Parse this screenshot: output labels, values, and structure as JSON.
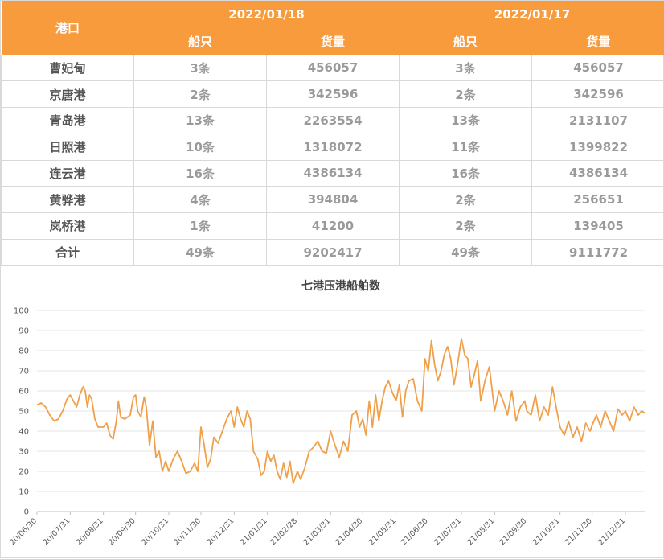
{
  "table": {
    "header_port": "港口",
    "dates": [
      "2022/01/18",
      "2022/01/17"
    ],
    "sub_headers": [
      "船只",
      "货量",
      "船只",
      "货量"
    ],
    "rows": [
      {
        "port": "曹妃甸",
        "ships1": "3条",
        "cargo1": "456057",
        "ships2": "3条",
        "cargo2": "456057"
      },
      {
        "port": "京唐港",
        "ships1": "2条",
        "cargo1": "342596",
        "ships2": "2条",
        "cargo2": "342596"
      },
      {
        "port": "青岛港",
        "ships1": "13条",
        "cargo1": "2263554",
        "ships2": "13条",
        "cargo2": "2131107"
      },
      {
        "port": "日照港",
        "ships1": "10条",
        "cargo1": "1318072",
        "ships2": "11条",
        "cargo2": "1399822"
      },
      {
        "port": "连云港",
        "ships1": "16条",
        "cargo1": "4386134",
        "ships2": "16条",
        "cargo2": "4386134"
      },
      {
        "port": "黄骅港",
        "ships1": "4条",
        "cargo1": "394804",
        "ships2": "2条",
        "cargo2": "256651"
      },
      {
        "port": "岚桥港",
        "ships1": "1条",
        "cargo1": "41200",
        "ships2": "2条",
        "cargo2": "139405"
      },
      {
        "port": "合计",
        "ships1": "49条",
        "cargo1": "9202417",
        "ships2": "49条",
        "cargo2": "9111772"
      }
    ]
  },
  "chart_data": {
    "type": "line",
    "title": "七港压港船舶数",
    "xlabel": "",
    "ylabel": "",
    "ylim": [
      0,
      100
    ],
    "yticks": [
      0,
      10,
      20,
      30,
      40,
      50,
      60,
      70,
      80,
      90,
      100
    ],
    "x_range": [
      "20/06/30",
      "22/01/18"
    ],
    "xticks": [
      "20/06/30",
      "20/07/31",
      "20/08/31",
      "20/09/30",
      "20/10/31",
      "20/11/30",
      "20/12/31",
      "21/01/31",
      "21/02/28",
      "21/03/31",
      "21/04/30",
      "21/05/31",
      "21/06/30",
      "21/07/31",
      "21/08/31",
      "21/09/30",
      "21/10/31",
      "21/11/30",
      "21/12/31"
    ],
    "grid": "horizontal",
    "line_color": "#f0a04b",
    "series": [
      {
        "points": [
          [
            "20/06/30",
            53
          ],
          [
            "20/07/04",
            54
          ],
          [
            "20/07/08",
            52
          ],
          [
            "20/07/12",
            48
          ],
          [
            "20/07/16",
            45
          ],
          [
            "20/07/20",
            46
          ],
          [
            "20/07/24",
            50
          ],
          [
            "20/07/28",
            56
          ],
          [
            "20/07/31",
            58
          ],
          [
            "20/08/03",
            55
          ],
          [
            "20/08/06",
            52
          ],
          [
            "20/08/09",
            58
          ],
          [
            "20/08/12",
            62
          ],
          [
            "20/08/14",
            60
          ],
          [
            "20/08/16",
            52
          ],
          [
            "20/08/18",
            58
          ],
          [
            "20/08/20",
            56
          ],
          [
            "20/08/23",
            46
          ],
          [
            "20/08/26",
            42
          ],
          [
            "20/08/31",
            42
          ],
          [
            "20/09/03",
            44
          ],
          [
            "20/09/06",
            38
          ],
          [
            "20/09/09",
            36
          ],
          [
            "20/09/12",
            45
          ],
          [
            "20/09/14",
            55
          ],
          [
            "20/09/16",
            47
          ],
          [
            "20/09/20",
            46
          ],
          [
            "20/09/25",
            48
          ],
          [
            "20/09/28",
            57
          ],
          [
            "20/09/30",
            58
          ],
          [
            "20/10/02",
            50
          ],
          [
            "20/10/05",
            47
          ],
          [
            "20/10/08",
            57
          ],
          [
            "20/10/10",
            52
          ],
          [
            "20/10/13",
            33
          ],
          [
            "20/10/16",
            45
          ],
          [
            "20/10/19",
            27
          ],
          [
            "20/10/22",
            30
          ],
          [
            "20/10/25",
            20
          ],
          [
            "20/10/28",
            25
          ],
          [
            "20/10/31",
            20
          ],
          [
            "20/11/04",
            26
          ],
          [
            "20/11/08",
            30
          ],
          [
            "20/11/12",
            25
          ],
          [
            "20/11/16",
            19
          ],
          [
            "20/11/20",
            20
          ],
          [
            "20/11/24",
            24
          ],
          [
            "20/11/27",
            20
          ],
          [
            "20/11/30",
            42
          ],
          [
            "20/12/03",
            33
          ],
          [
            "20/12/06",
            22
          ],
          [
            "20/12/09",
            26
          ],
          [
            "20/12/12",
            37
          ],
          [
            "20/12/16",
            34
          ],
          [
            "20/12/20",
            40
          ],
          [
            "20/12/24",
            46
          ],
          [
            "20/12/28",
            50
          ],
          [
            "20/12/31",
            42
          ],
          [
            "21/01/03",
            52
          ],
          [
            "21/01/06",
            46
          ],
          [
            "21/01/09",
            42
          ],
          [
            "21/01/12",
            50
          ],
          [
            "21/01/15",
            46
          ],
          [
            "21/01/18",
            30
          ],
          [
            "21/01/22",
            26
          ],
          [
            "21/01/25",
            18
          ],
          [
            "21/01/28",
            20
          ],
          [
            "21/01/31",
            30
          ],
          [
            "21/02/03",
            25
          ],
          [
            "21/02/06",
            28
          ],
          [
            "21/02/09",
            20
          ],
          [
            "21/02/12",
            16
          ],
          [
            "21/02/15",
            24
          ],
          [
            "21/02/18",
            17
          ],
          [
            "21/02/21",
            25
          ],
          [
            "21/02/24",
            14
          ],
          [
            "21/02/28",
            20
          ],
          [
            "21/03/03",
            16
          ],
          [
            "21/03/07",
            22
          ],
          [
            "21/03/11",
            30
          ],
          [
            "21/03/15",
            32
          ],
          [
            "21/03/19",
            35
          ],
          [
            "21/03/23",
            30
          ],
          [
            "21/03/27",
            29
          ],
          [
            "21/03/31",
            40
          ],
          [
            "21/04/04",
            33
          ],
          [
            "21/04/08",
            27
          ],
          [
            "21/04/12",
            35
          ],
          [
            "21/04/16",
            30
          ],
          [
            "21/04/20",
            48
          ],
          [
            "21/04/24",
            50
          ],
          [
            "21/04/27",
            42
          ],
          [
            "21/04/30",
            46
          ],
          [
            "21/05/03",
            38
          ],
          [
            "21/05/06",
            55
          ],
          [
            "21/05/09",
            42
          ],
          [
            "21/05/12",
            58
          ],
          [
            "21/05/15",
            45
          ],
          [
            "21/05/18",
            55
          ],
          [
            "21/05/21",
            62
          ],
          [
            "21/05/24",
            65
          ],
          [
            "21/05/27",
            60
          ],
          [
            "21/05/31",
            55
          ],
          [
            "21/06/03",
            63
          ],
          [
            "21/06/06",
            47
          ],
          [
            "21/06/09",
            60
          ],
          [
            "21/06/12",
            65
          ],
          [
            "21/06/16",
            66
          ],
          [
            "21/06/20",
            55
          ],
          [
            "21/06/24",
            50
          ],
          [
            "21/06/27",
            76
          ],
          [
            "21/06/30",
            70
          ],
          [
            "21/07/03",
            85
          ],
          [
            "21/07/06",
            73
          ],
          [
            "21/07/09",
            65
          ],
          [
            "21/07/12",
            70
          ],
          [
            "21/07/15",
            78
          ],
          [
            "21/07/18",
            82
          ],
          [
            "21/07/21",
            76
          ],
          [
            "21/07/24",
            63
          ],
          [
            "21/07/27",
            72
          ],
          [
            "21/07/31",
            86
          ],
          [
            "21/08/03",
            78
          ],
          [
            "21/08/06",
            76
          ],
          [
            "21/08/09",
            62
          ],
          [
            "21/08/12",
            68
          ],
          [
            "21/08/15",
            75
          ],
          [
            "21/08/18",
            55
          ],
          [
            "21/08/22",
            65
          ],
          [
            "21/08/26",
            72
          ],
          [
            "21/08/31",
            50
          ],
          [
            "21/09/04",
            60
          ],
          [
            "21/09/08",
            55
          ],
          [
            "21/09/12",
            48
          ],
          [
            "21/09/16",
            60
          ],
          [
            "21/09/20",
            45
          ],
          [
            "21/09/24",
            52
          ],
          [
            "21/09/28",
            55
          ],
          [
            "21/09/30",
            50
          ],
          [
            "21/10/04",
            48
          ],
          [
            "21/10/08",
            58
          ],
          [
            "21/10/12",
            45
          ],
          [
            "21/10/16",
            52
          ],
          [
            "21/10/20",
            48
          ],
          [
            "21/10/24",
            62
          ],
          [
            "21/10/28",
            50
          ],
          [
            "21/10/31",
            42
          ],
          [
            "21/11/04",
            38
          ],
          [
            "21/11/08",
            45
          ],
          [
            "21/11/12",
            37
          ],
          [
            "21/11/16",
            42
          ],
          [
            "21/11/20",
            35
          ],
          [
            "21/11/24",
            44
          ],
          [
            "21/11/28",
            40
          ],
          [
            "21/11/30",
            43
          ],
          [
            "21/12/04",
            48
          ],
          [
            "21/12/08",
            42
          ],
          [
            "21/12/12",
            50
          ],
          [
            "21/12/16",
            45
          ],
          [
            "21/12/20",
            40
          ],
          [
            "21/12/24",
            51
          ],
          [
            "21/12/28",
            48
          ],
          [
            "21/12/31",
            50
          ],
          [
            "22/01/04",
            45
          ],
          [
            "22/01/08",
            52
          ],
          [
            "22/01/12",
            48
          ],
          [
            "22/01/15",
            50
          ],
          [
            "22/01/18",
            49
          ]
        ]
      }
    ]
  }
}
